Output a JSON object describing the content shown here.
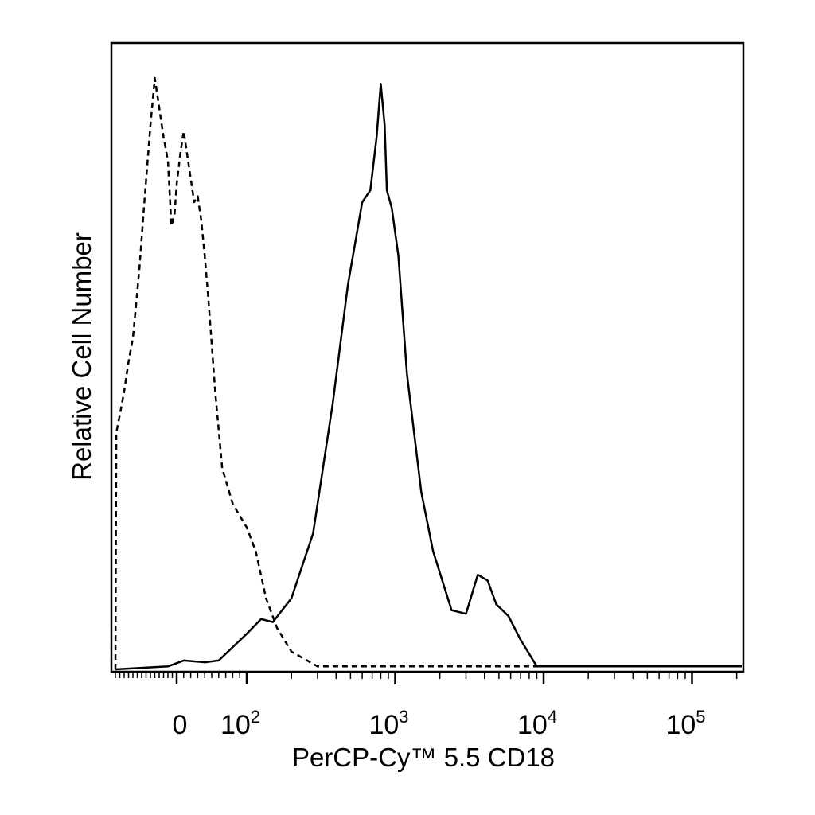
{
  "chart_data": {
    "type": "line",
    "title": "",
    "xlabel": "PerCP-Cy™ 5.5 CD18",
    "ylabel": "Relative Cell Number",
    "x_scale": "biexponential",
    "xlim": [
      -150,
      250000
    ],
    "ylim": [
      0,
      1.0
    ],
    "grid": false,
    "legend": "none",
    "x_tick_labels": [
      {
        "value": 0,
        "base": "0",
        "exp": ""
      },
      {
        "value": 100,
        "base": "10",
        "exp": "2"
      },
      {
        "value": 1000,
        "base": "10",
        "exp": "3"
      },
      {
        "value": 10000,
        "base": "10",
        "exp": "4"
      },
      {
        "value": 100000,
        "base": "10",
        "exp": "5"
      }
    ],
    "series": [
      {
        "style": "dashed",
        "color": "#000000",
        "x": [
          -140,
          -138,
          -130,
          -120,
          -110,
          -100,
          -95,
          -85,
          -75,
          -60,
          -50,
          -40,
          -30,
          -20,
          -12,
          -5,
          0,
          5,
          10,
          15,
          20,
          25,
          30,
          35,
          40,
          45,
          50,
          55,
          65,
          80,
          100,
          115,
          135,
          160,
          200,
          300,
          1000,
          10000,
          250000
        ],
        "y": [
          0.0,
          0.4,
          0.43,
          0.47,
          0.52,
          0.56,
          0.6,
          0.68,
          0.78,
          0.92,
          1.0,
          0.95,
          0.9,
          0.86,
          0.75,
          0.77,
          0.82,
          0.87,
          0.91,
          0.87,
          0.83,
          0.79,
          0.8,
          0.76,
          0.7,
          0.63,
          0.55,
          0.47,
          0.34,
          0.28,
          0.24,
          0.2,
          0.12,
          0.07,
          0.03,
          0.005,
          0.005,
          0.005,
          0.005
        ]
      },
      {
        "style": "solid",
        "color": "#000000",
        "x": [
          -140,
          -20,
          10,
          40,
          60,
          100,
          125,
          150,
          200,
          280,
          380,
          480,
          600,
          680,
          750,
          800,
          850,
          880,
          950,
          1050,
          1200,
          1500,
          1800,
          2400,
          3000,
          3600,
          4200,
          4800,
          5800,
          7000,
          9000,
          250000
        ],
        "y": [
          0.0,
          0.005,
          0.015,
          0.012,
          0.015,
          0.06,
          0.085,
          0.08,
          0.12,
          0.23,
          0.45,
          0.65,
          0.79,
          0.81,
          0.9,
          0.99,
          0.92,
          0.81,
          0.78,
          0.7,
          0.5,
          0.3,
          0.2,
          0.1,
          0.094,
          0.16,
          0.15,
          0.11,
          0.09,
          0.05,
          0.005,
          0.005
        ]
      }
    ]
  }
}
